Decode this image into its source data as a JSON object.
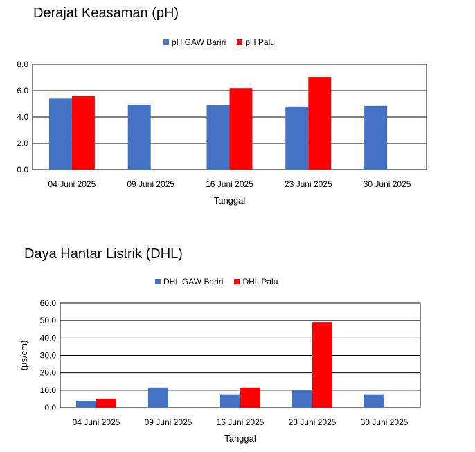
{
  "charts": [
    {
      "title": "Derajat Keasaman (pH)",
      "xlabel": "Tanggal",
      "ylabel": "",
      "legend": [
        "pH GAW Bariri",
        "pH Palu"
      ]
    },
    {
      "title": "Daya Hantar Listrik (DHL)",
      "xlabel": "Tanggal",
      "ylabel": "(µs/cm)",
      "legend": [
        "DHL GAW Bariri",
        "DHL Palu"
      ]
    }
  ],
  "colors": {
    "series1": "#4472C4",
    "series2": "#FF0000"
  },
  "chart_data": [
    {
      "type": "bar",
      "title": "Derajat Keasaman (pH)",
      "xlabel": "Tanggal",
      "ylabel": "",
      "categories": [
        "04 Juni 2025",
        "09 Juni 2025",
        "16 Juni 2025",
        "23 Juni 2025",
        "30 Juni 2025"
      ],
      "series": [
        {
          "name": "pH GAW Bariri",
          "values": [
            5.4,
            4.95,
            4.9,
            4.8,
            4.85
          ]
        },
        {
          "name": "pH Palu",
          "values": [
            5.6,
            null,
            6.2,
            7.05,
            null
          ]
        }
      ],
      "ylim": [
        0,
        8
      ],
      "yticks": [
        "0.0",
        "2.0",
        "4.0",
        "6.0",
        "8.0"
      ],
      "grid": true,
      "legend_position": "top"
    },
    {
      "type": "bar",
      "title": "Daya Hantar Listrik (DHL)",
      "xlabel": "Tanggal",
      "ylabel": "(µs/cm)",
      "categories": [
        "04 Juni 2025",
        "09 Juni 2025",
        "16 Juni 2025",
        "23 Juni 2025",
        "30 Juni 2025"
      ],
      "series": [
        {
          "name": "DHL GAW Bariri",
          "values": [
            4.0,
            11.6,
            7.7,
            10.0,
            7.7
          ]
        },
        {
          "name": "DHL Palu",
          "values": [
            5.2,
            null,
            11.6,
            49.2,
            null
          ]
        }
      ],
      "ylim": [
        0,
        60
      ],
      "yticks": [
        "0.0",
        "10.0",
        "20.0",
        "30.0",
        "40.0",
        "50.0",
        "60.0"
      ],
      "grid": true,
      "legend_position": "top"
    }
  ]
}
